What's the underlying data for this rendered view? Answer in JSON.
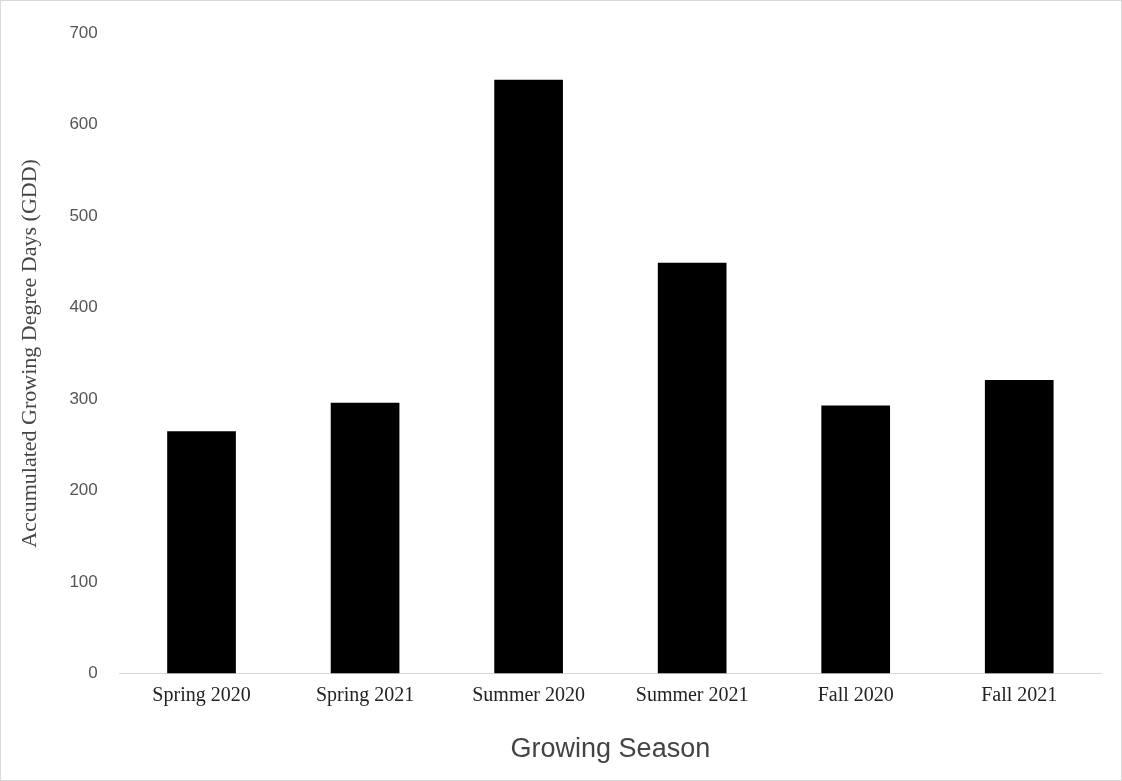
{
  "chart_data": {
    "type": "bar",
    "categories": [
      "Spring 2020",
      "Spring 2021",
      "Summer 2020",
      "Summer 2021",
      "Fall 2020",
      "Fall 2021"
    ],
    "values": [
      265,
      296,
      649,
      449,
      293,
      321
    ],
    "color": "#000000",
    "xlabel": "Growing Season",
    "ylabel": "Accumulated Growing Degree Days (GDD)",
    "ylim": [
      0,
      700
    ],
    "yticks": [
      0,
      100,
      200,
      300,
      400,
      500,
      600,
      700
    ],
    "grid": false,
    "legend": false
  }
}
